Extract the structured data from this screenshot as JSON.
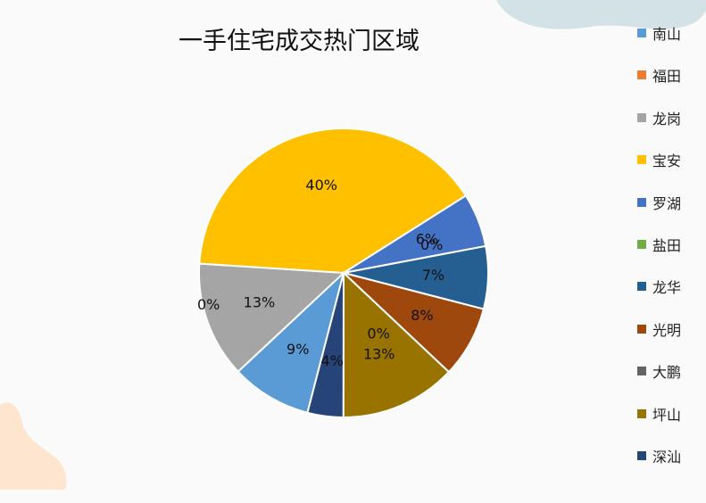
{
  "chart_data": {
    "type": "pie",
    "title": "一手住宅成交热门区域",
    "legend_position": "right",
    "slices": [
      {
        "label": "南山",
        "value": 9,
        "data_label": "9%",
        "color": "#5B9BD5"
      },
      {
        "label": "福田",
        "value": 0,
        "data_label": "0%",
        "color": "#ED7D31"
      },
      {
        "label": "龙岗",
        "value": 13,
        "data_label": "13%",
        "color": "#A5A5A5"
      },
      {
        "label": "宝安",
        "value": 40,
        "data_label": "40%",
        "color": "#FFC000"
      },
      {
        "label": "罗湖",
        "value": 6,
        "data_label": "6%",
        "color": "#4472C4"
      },
      {
        "label": "盐田",
        "value": 0,
        "data_label": "0%",
        "color": "#70AD47"
      },
      {
        "label": "龙华",
        "value": 7,
        "data_label": "7%",
        "color": "#255E91"
      },
      {
        "label": "光明",
        "value": 8,
        "data_label": "8%",
        "color": "#9E480E"
      },
      {
        "label": "大鹏",
        "value": 0,
        "data_label": "0%",
        "color": "#636363"
      },
      {
        "label": "坪山",
        "value": 13,
        "data_label": "13%",
        "color": "#997300"
      },
      {
        "label": "深汕",
        "value": 4,
        "data_label": "4%",
        "color": "#264478"
      }
    ]
  }
}
